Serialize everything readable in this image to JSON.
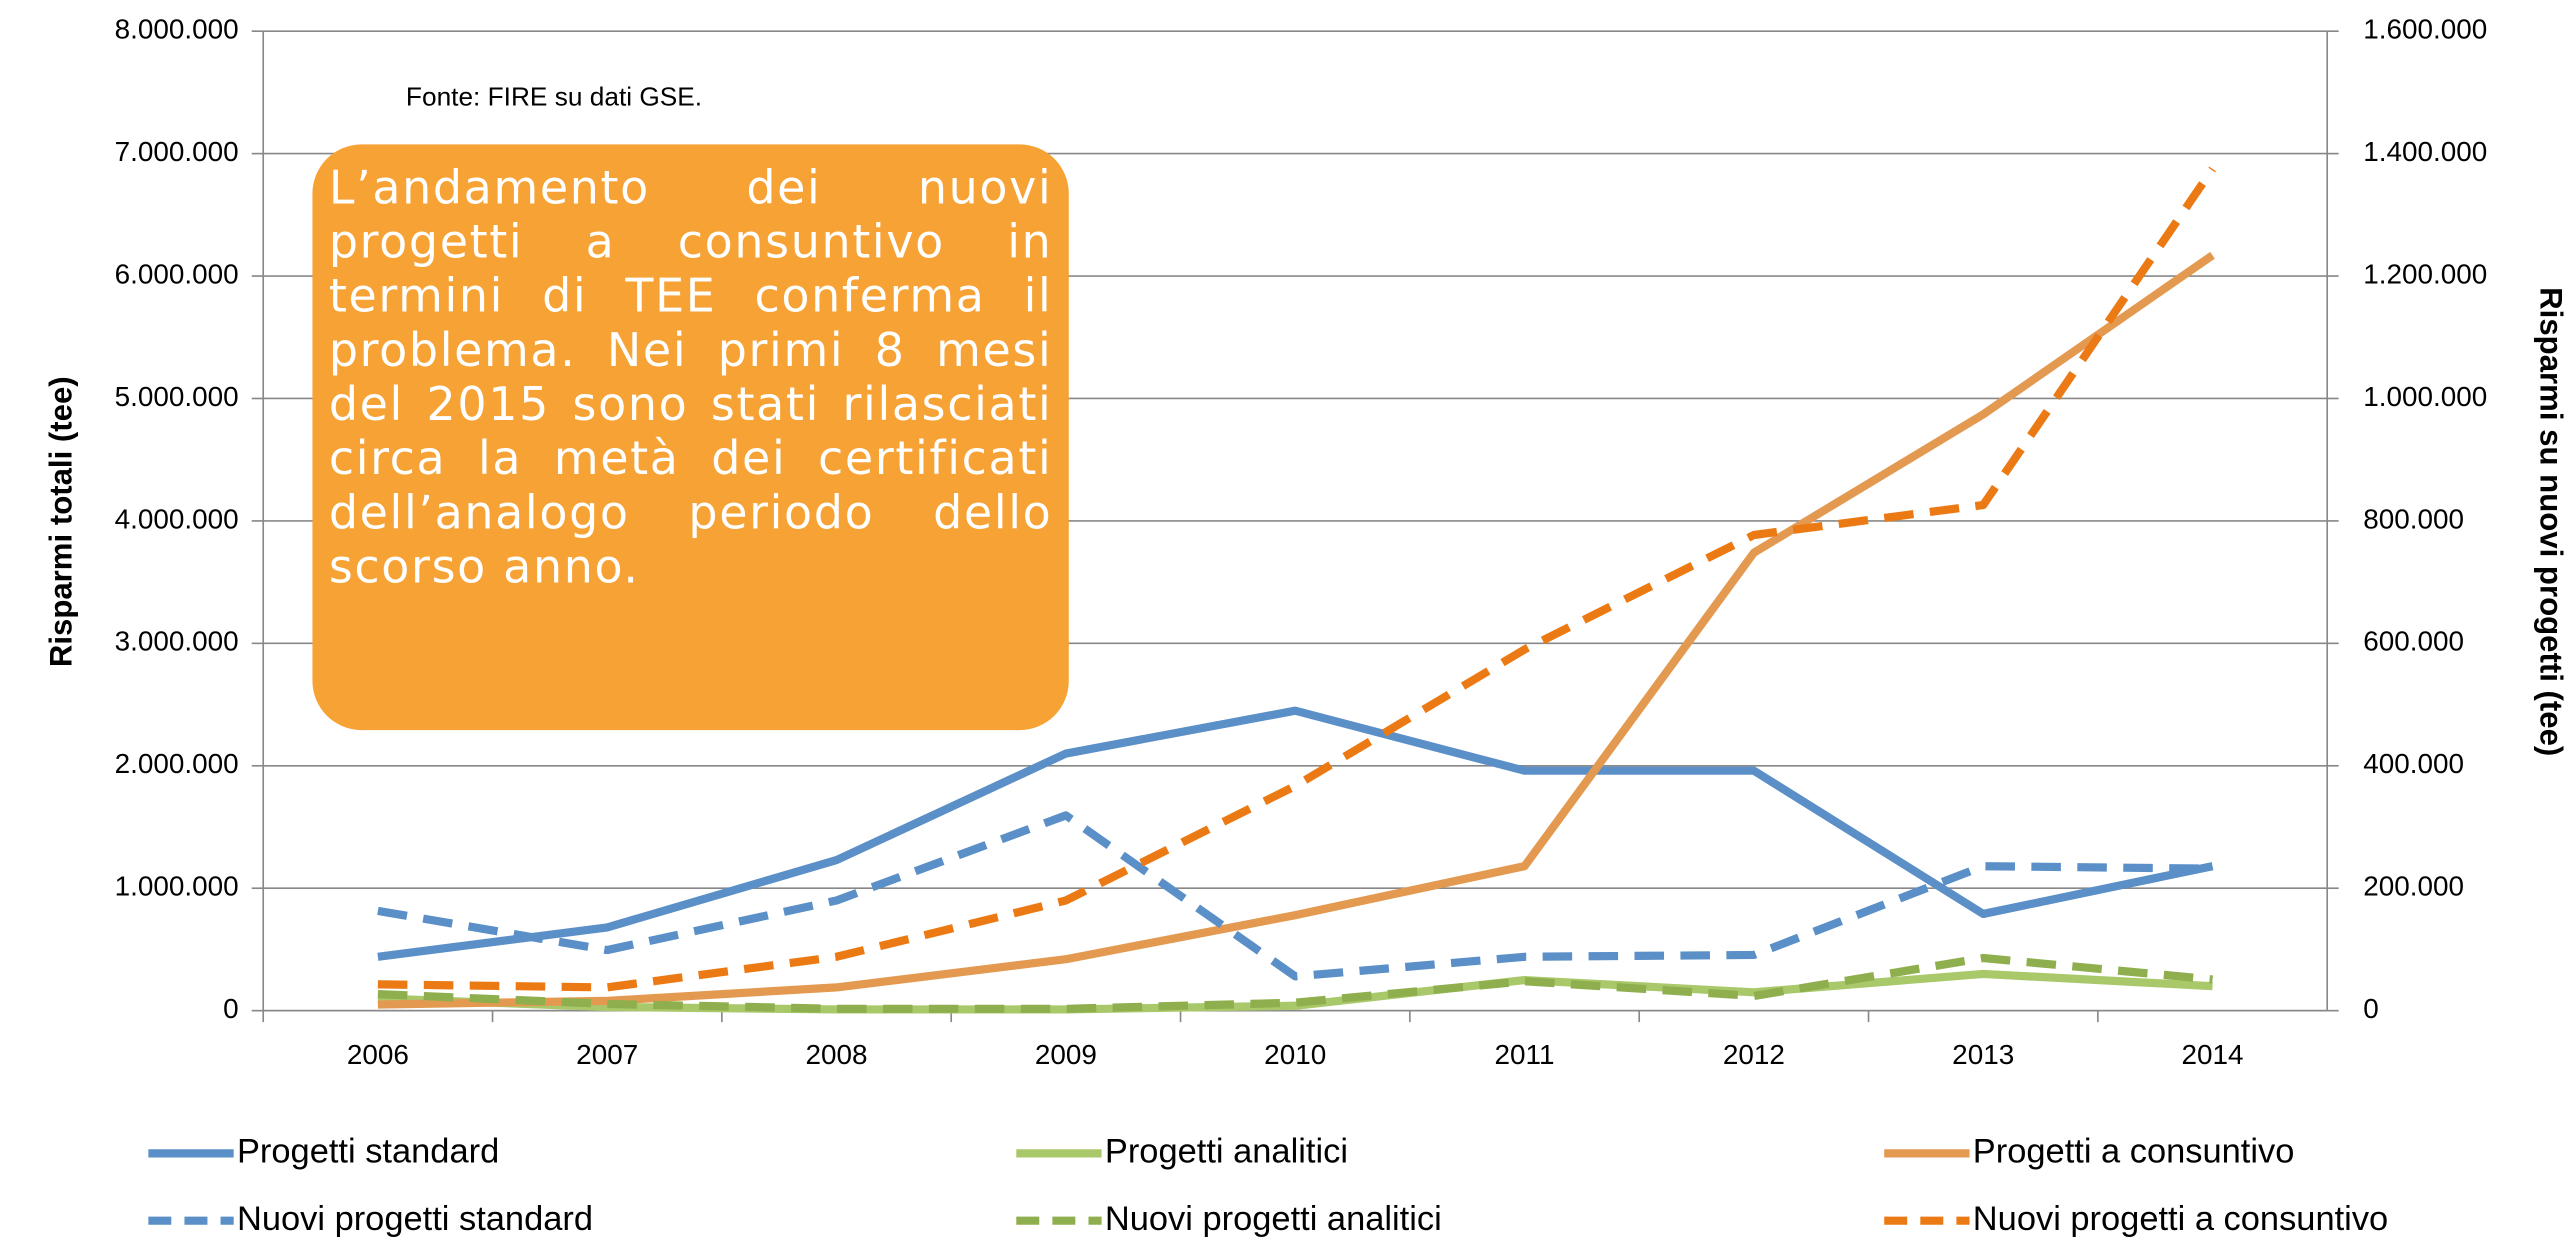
{
  "chart_data": {
    "type": "line",
    "annotations": [
      "Fonte: FIRE su dati GSE.",
      "L’andamento dei nuovi progetti a consuntivo in termini di TEE conferma il problema. Nei primi 8 mesi del 2015 sono stati rilasciati circa la metà dei certificati dell’analogo periodo dello scorso anno."
    ],
    "ylabel": "Risparmi totali (tee)",
    "y2label": "Risparmi su nuovi progetti (tee)",
    "categories": [
      "2006",
      "2007",
      "2008",
      "2009",
      "2010",
      "2011",
      "2012",
      "2013",
      "2014"
    ],
    "ylim": [
      0,
      8000000
    ],
    "yticks": [
      0,
      {
        "value": 1000000,
        "label": "1.000.000"
      },
      {
        "value": 2000000,
        "label": "2.000.000"
      },
      {
        "value": 3000000,
        "label": "3.000.000"
      },
      {
        "value": 4000000,
        "label": "4.000.000"
      },
      {
        "value": 5000000,
        "label": "5.000.000"
      },
      {
        "value": 6000000,
        "label": "6.000.000"
      },
      {
        "value": 7000000,
        "label": "7.000.000"
      },
      {
        "value": 8000000,
        "label": "8.000.000"
      }
    ],
    "y2lim": [
      0,
      1600000
    ],
    "y2ticks": [
      0,
      {
        "value": 200000,
        "label": "200.000"
      },
      {
        "value": 400000,
        "label": "400.000"
      },
      {
        "value": 600000,
        "label": "600.000"
      },
      {
        "value": 800000,
        "label": "800.000"
      },
      {
        "value": 1000000,
        "label": "1.000.000"
      },
      {
        "value": 1200000,
        "label": "1.200.000"
      },
      {
        "value": 1400000,
        "label": "1.400.000"
      },
      {
        "value": 1600000,
        "label": "1.600.000"
      }
    ],
    "grid": true,
    "legend": "bottom",
    "series": [
      {
        "name": "Progetti standard",
        "color": "#5b8fc7",
        "style": "solid",
        "axis": "y",
        "values": [
          440000,
          680000,
          1230000,
          2100000,
          2450000,
          1960000,
          1960000,
          790000,
          1180000
        ]
      },
      {
        "name": "Progetti analitici",
        "color": "#a9c86a",
        "style": "solid",
        "axis": "y",
        "values": [
          100000,
          30000,
          10000,
          10000,
          40000,
          250000,
          150000,
          300000,
          200000
        ]
      },
      {
        "name": "Progetti a consuntivo",
        "color": "#e39a50",
        "style": "solid",
        "axis": "y",
        "values": [
          50000,
          80000,
          190000,
          420000,
          780000,
          1180000,
          3740000,
          4870000,
          6170000
        ]
      },
      {
        "name": "Nuovi progetti standard",
        "color": "#5b8fc7",
        "style": "dashed",
        "axis": "y2",
        "values": [
          163000,
          99000,
          180000,
          319000,
          56000,
          88000,
          91000,
          236000,
          232000
        ]
      },
      {
        "name": "Nuovi progetti analitici",
        "color": "#8faf4f",
        "style": "dashed",
        "axis": "y2",
        "values": [
          27000,
          11000,
          3000,
          3000,
          13000,
          48000,
          24000,
          86000,
          51000
        ]
      },
      {
        "name": "Nuovi progetti a consuntivo",
        "color": "#ec7a14",
        "style": "dashed",
        "axis": "y2",
        "values": [
          43000,
          38000,
          88000,
          180000,
          367000,
          590000,
          777000,
          826000,
          1375000
        ]
      }
    ]
  }
}
